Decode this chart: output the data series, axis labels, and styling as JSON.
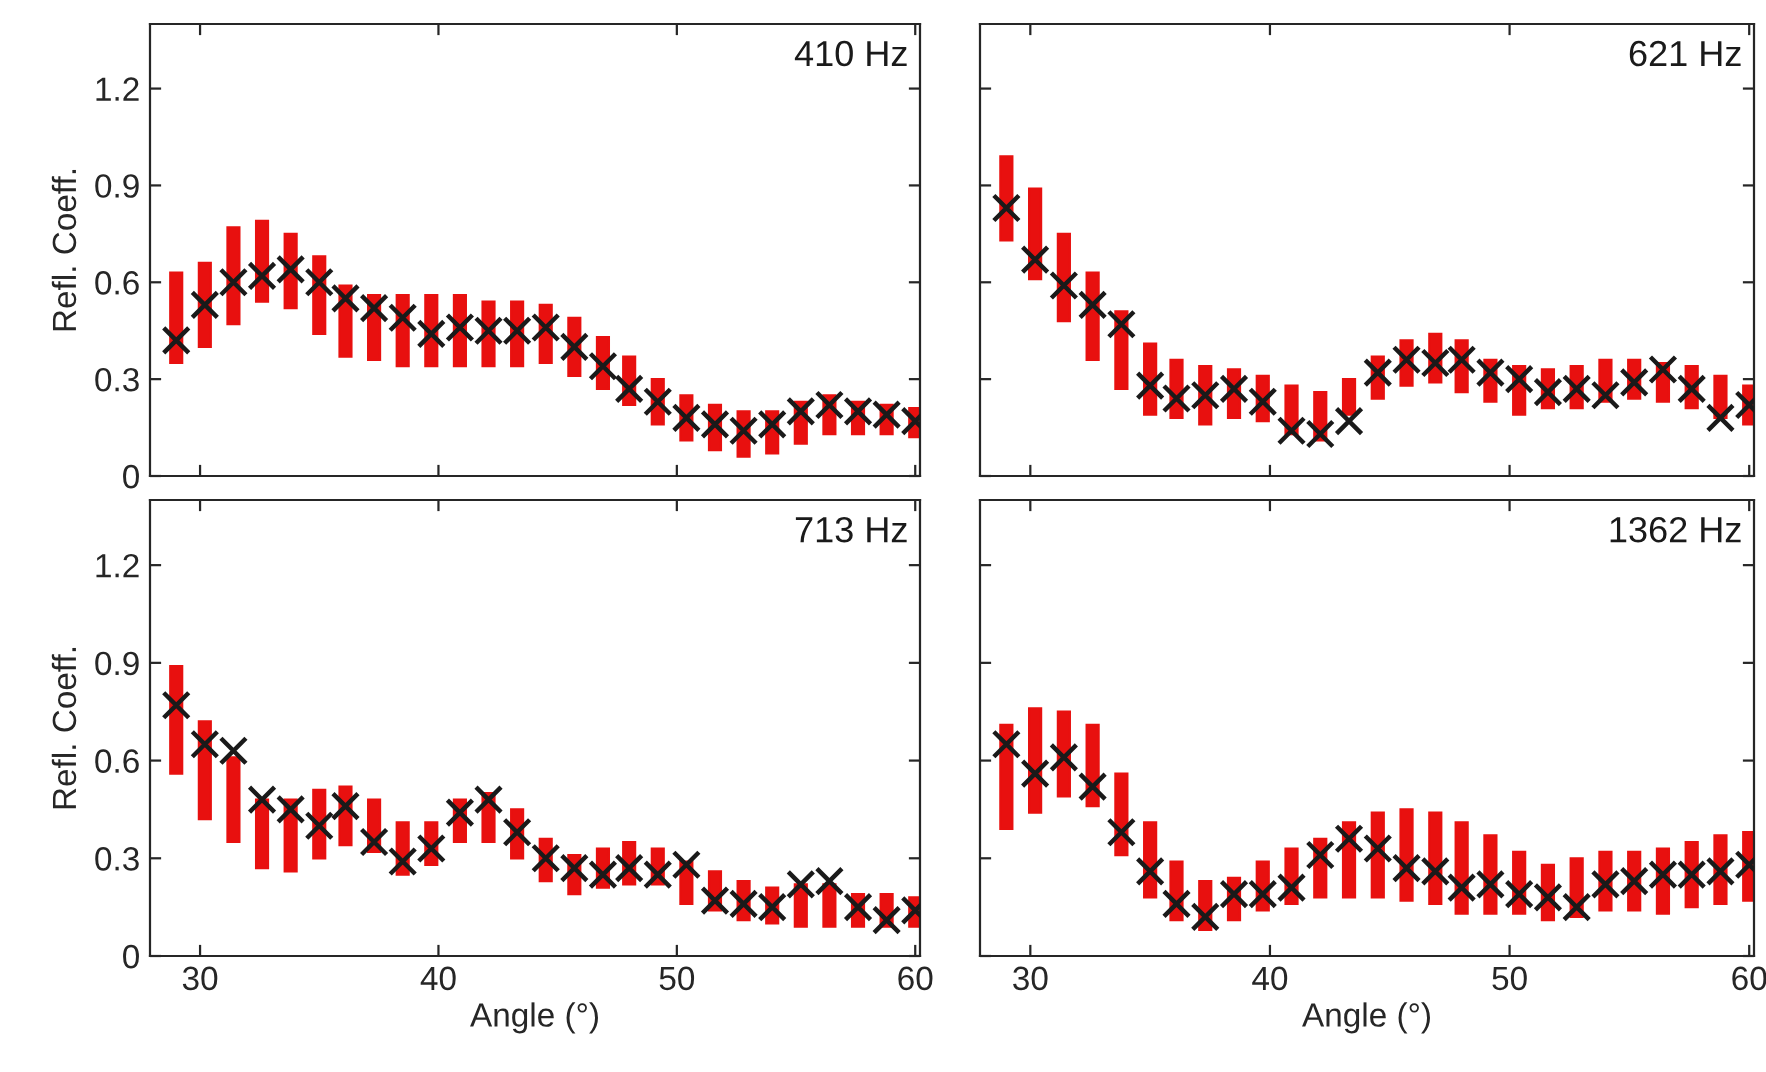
{
  "chart_data": [
    {
      "type": "bar",
      "title": "410 Hz",
      "ylabel": "Refl. Coeff.",
      "xlim": [
        27.9,
        60.2
      ],
      "ylim": [
        0,
        1.4
      ],
      "xticks": [
        30,
        40,
        50,
        60
      ],
      "yticks": [
        0,
        0.3,
        0.6,
        0.9,
        1.2
      ],
      "tick_labels": "y",
      "grid": false,
      "x": [
        29.0,
        30.2,
        31.4,
        32.6,
        33.8,
        35.0,
        36.1,
        37.3,
        38.5,
        39.7,
        40.9,
        42.1,
        43.3,
        44.5,
        45.7,
        46.9,
        48.0,
        49.2,
        50.4,
        51.6,
        52.8,
        54.0,
        55.2,
        56.4,
        57.6,
        58.8,
        60.0
      ],
      "series": [
        {
          "color": "#e8100f",
          "base": [
            0.35,
            0.4,
            0.47,
            0.54,
            0.52,
            0.44,
            0.37,
            0.36,
            0.34,
            0.34,
            0.34,
            0.34,
            0.34,
            0.35,
            0.31,
            0.27,
            0.22,
            0.16,
            0.11,
            0.08,
            0.06,
            0.07,
            0.1,
            0.13,
            0.13,
            0.13,
            0.12
          ],
          "values": [
            0.28,
            0.26,
            0.3,
            0.25,
            0.23,
            0.24,
            0.22,
            0.2,
            0.22,
            0.22,
            0.22,
            0.2,
            0.2,
            0.18,
            0.18,
            0.16,
            0.15,
            0.14,
            0.14,
            0.14,
            0.14,
            0.13,
            0.13,
            0.12,
            0.1,
            0.09,
            0.09
          ]
        },
        {
          "type": "scatter",
          "marker": "cross",
          "color": "#1a1a1a",
          "values": [
            0.42,
            0.53,
            0.6,
            0.62,
            0.64,
            0.6,
            0.55,
            0.52,
            0.49,
            0.44,
            0.46,
            0.45,
            0.45,
            0.46,
            0.4,
            0.34,
            0.27,
            0.23,
            0.18,
            0.16,
            0.14,
            0.16,
            0.2,
            0.22,
            0.2,
            0.19,
            0.17
          ]
        }
      ]
    },
    {
      "type": "bar",
      "title": "621 Hz",
      "xlim": [
        27.9,
        60.2
      ],
      "ylim": [
        0,
        1.4
      ],
      "xticks": [
        30,
        40,
        50,
        60
      ],
      "yticks": [
        0,
        0.3,
        0.6,
        0.9,
        1.2
      ],
      "tick_labels": false,
      "grid": false,
      "x": [
        29.0,
        30.2,
        31.4,
        32.6,
        33.8,
        35.0,
        36.1,
        37.3,
        38.5,
        39.7,
        40.9,
        42.1,
        43.3,
        44.5,
        45.7,
        46.9,
        48.0,
        49.2,
        50.4,
        51.6,
        52.8,
        54.0,
        55.2,
        56.4,
        57.6,
        58.8,
        60.0
      ],
      "series": [
        {
          "color": "#e8100f",
          "base": [
            0.73,
            0.61,
            0.48,
            0.36,
            0.27,
            0.19,
            0.18,
            0.16,
            0.18,
            0.17,
            0.13,
            0.11,
            0.19,
            0.24,
            0.28,
            0.29,
            0.26,
            0.23,
            0.19,
            0.21,
            0.21,
            0.23,
            0.24,
            0.23,
            0.21,
            0.18,
            0.16
          ],
          "values": [
            0.26,
            0.28,
            0.27,
            0.27,
            0.24,
            0.22,
            0.18,
            0.18,
            0.15,
            0.14,
            0.15,
            0.15,
            0.11,
            0.13,
            0.14,
            0.15,
            0.16,
            0.13,
            0.15,
            0.12,
            0.13,
            0.13,
            0.12,
            0.12,
            0.13,
            0.13,
            0.12
          ]
        },
        {
          "type": "scatter",
          "marker": "cross",
          "color": "#1a1a1a",
          "values": [
            0.83,
            0.67,
            0.59,
            0.53,
            0.47,
            0.28,
            0.24,
            0.25,
            0.27,
            0.23,
            0.14,
            0.13,
            0.17,
            0.32,
            0.36,
            0.35,
            0.36,
            0.32,
            0.3,
            0.26,
            0.27,
            0.25,
            0.29,
            0.33,
            0.27,
            0.18,
            0.22
          ]
        }
      ]
    },
    {
      "type": "bar",
      "title": "713 Hz",
      "ylabel": "Refl. Coeff.",
      "xlabel": "Angle (°)",
      "xlim": [
        27.9,
        60.2
      ],
      "ylim": [
        0,
        1.4
      ],
      "xticks": [
        30,
        40,
        50,
        60
      ],
      "yticks": [
        0,
        0.3,
        0.6,
        0.9,
        1.2
      ],
      "grid": false,
      "x": [
        29.0,
        30.2,
        31.4,
        32.6,
        33.8,
        35.0,
        36.1,
        37.3,
        38.5,
        39.7,
        40.9,
        42.1,
        43.3,
        44.5,
        45.7,
        46.9,
        48.0,
        49.2,
        50.4,
        51.6,
        52.8,
        54.0,
        55.2,
        56.4,
        57.6,
        58.8,
        60.0
      ],
      "series": [
        {
          "color": "#e8100f",
          "base": [
            0.56,
            0.42,
            0.35,
            0.27,
            0.26,
            0.3,
            0.34,
            0.32,
            0.25,
            0.28,
            0.35,
            0.35,
            0.3,
            0.23,
            0.19,
            0.21,
            0.22,
            0.22,
            0.16,
            0.14,
            0.11,
            0.1,
            0.09,
            0.09,
            0.09,
            0.09,
            0.09
          ],
          "values": [
            0.33,
            0.3,
            0.26,
            0.21,
            0.22,
            0.21,
            0.18,
            0.16,
            0.16,
            0.13,
            0.13,
            0.15,
            0.15,
            0.13,
            0.12,
            0.12,
            0.13,
            0.11,
            0.13,
            0.12,
            0.12,
            0.11,
            0.13,
            0.13,
            0.1,
            0.1,
            0.09
          ]
        },
        {
          "type": "scatter",
          "marker": "cross",
          "color": "#1a1a1a",
          "values": [
            0.77,
            0.65,
            0.63,
            0.48,
            0.45,
            0.4,
            0.46,
            0.35,
            0.29,
            0.33,
            0.44,
            0.48,
            0.38,
            0.3,
            0.27,
            0.25,
            0.27,
            0.25,
            0.28,
            0.17,
            0.16,
            0.15,
            0.22,
            0.23,
            0.15,
            0.11,
            0.14
          ]
        }
      ]
    },
    {
      "type": "bar",
      "title": "1362 Hz",
      "xlabel": "Angle (°)",
      "xlim": [
        27.9,
        60.2
      ],
      "ylim": [
        0,
        1.4
      ],
      "xticks": [
        30,
        40,
        50,
        60
      ],
      "yticks": [
        0,
        0.3,
        0.6,
        0.9,
        1.2
      ],
      "tick_labels": "x",
      "grid": false,
      "x": [
        29.0,
        30.2,
        31.4,
        32.6,
        33.8,
        35.0,
        36.1,
        37.3,
        38.5,
        39.7,
        40.9,
        42.1,
        43.3,
        44.5,
        45.7,
        46.9,
        48.0,
        49.2,
        50.4,
        51.6,
        52.8,
        54.0,
        55.2,
        56.4,
        57.6,
        58.8,
        60.0
      ],
      "series": [
        {
          "color": "#e8100f",
          "base": [
            0.39,
            0.44,
            0.49,
            0.46,
            0.31,
            0.18,
            0.11,
            0.08,
            0.11,
            0.14,
            0.16,
            0.18,
            0.18,
            0.18,
            0.17,
            0.16,
            0.13,
            0.13,
            0.13,
            0.11,
            0.12,
            0.14,
            0.14,
            0.13,
            0.15,
            0.16,
            0.17
          ],
          "values": [
            0.32,
            0.32,
            0.26,
            0.25,
            0.25,
            0.23,
            0.18,
            0.15,
            0.13,
            0.15,
            0.17,
            0.18,
            0.23,
            0.26,
            0.28,
            0.28,
            0.28,
            0.24,
            0.19,
            0.17,
            0.18,
            0.18,
            0.18,
            0.2,
            0.2,
            0.21,
            0.21
          ]
        },
        {
          "type": "scatter",
          "marker": "cross",
          "color": "#1a1a1a",
          "values": [
            0.65,
            0.56,
            0.61,
            0.52,
            0.38,
            0.26,
            0.16,
            0.12,
            0.19,
            0.19,
            0.21,
            0.31,
            0.36,
            0.33,
            0.27,
            0.26,
            0.21,
            0.22,
            0.19,
            0.18,
            0.15,
            0.22,
            0.23,
            0.25,
            0.25,
            0.26,
            0.28
          ]
        }
      ]
    }
  ]
}
